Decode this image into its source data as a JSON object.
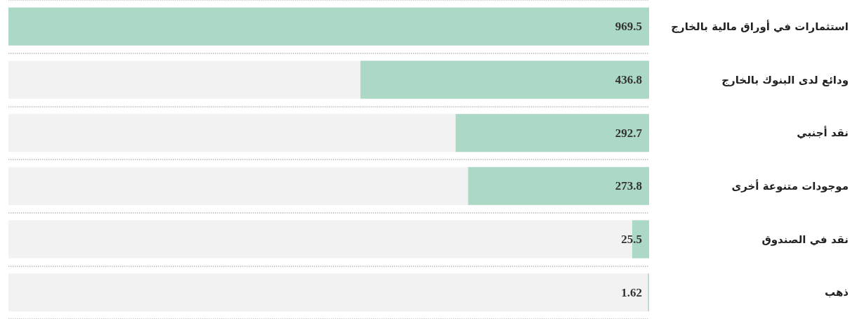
{
  "chart_data": {
    "type": "bar",
    "orientation": "horizontal",
    "categories": [
      "استثمارات في أوراق مالية بالخارج",
      "ودائع لدى البنوك بالخارج",
      "نقد أجنبي",
      "موجودات متنوعة أخرى",
      "نقد في الصندوق",
      "ذهب"
    ],
    "values": [
      969.5,
      436.8,
      292.7,
      273.8,
      25.5,
      1.62
    ],
    "color": "#acd8c6",
    "data_labels": true,
    "grid": "y"
  }
}
